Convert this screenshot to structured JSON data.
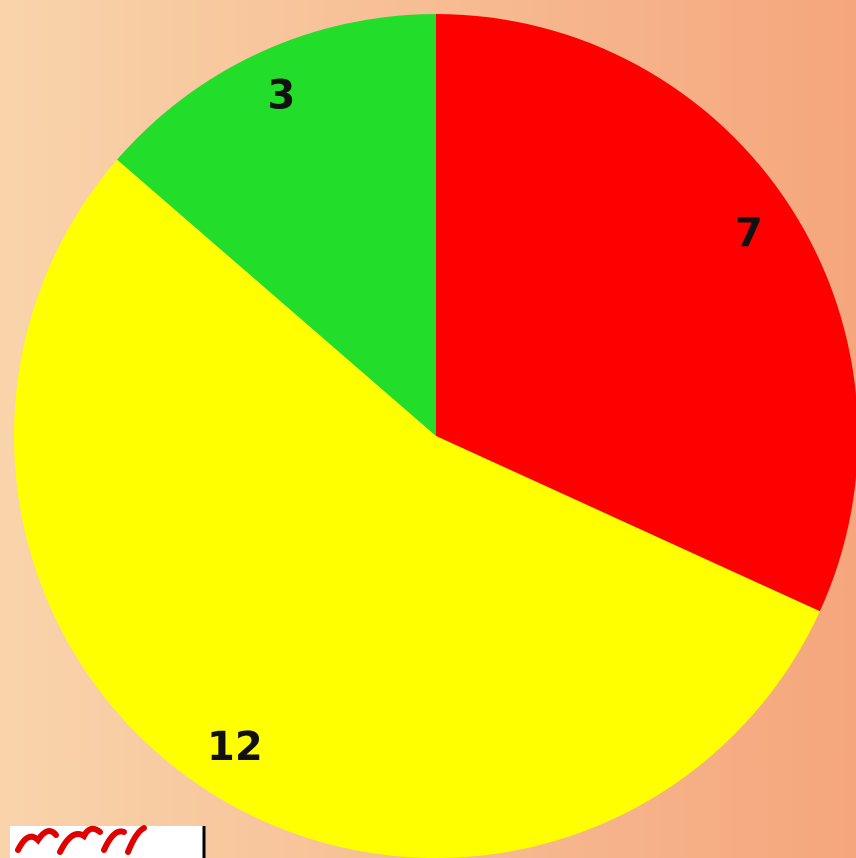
{
  "chart_data": {
    "type": "pie",
    "values": [
      7,
      12,
      3
    ],
    "colors": [
      "#ff0000",
      "#ffff00",
      "#22dd2a"
    ],
    "start_angle": 0,
    "direction": "clockwise"
  }
}
